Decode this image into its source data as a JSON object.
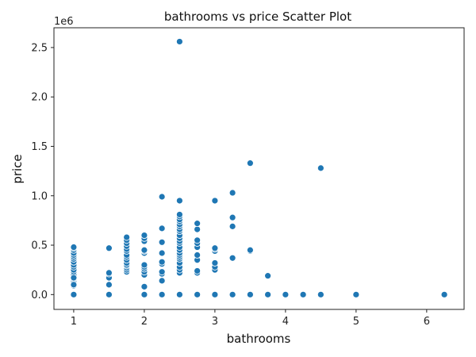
{
  "chart_data": {
    "type": "scatter",
    "title": "bathrooms vs price Scatter Plot",
    "xlabel": "bathrooms",
    "ylabel": "price",
    "y_offset_label": "1e6",
    "xlim": [
      0.72,
      6.53
    ],
    "ylim": [
      -150000,
      2700000
    ],
    "x_ticks": [
      1,
      2,
      3,
      4,
      5,
      6
    ],
    "x_tick_labels": [
      "1",
      "2",
      "3",
      "4",
      "5",
      "6"
    ],
    "y_ticks": [
      0,
      500000,
      1000000,
      1500000,
      2000000,
      2500000
    ],
    "y_tick_labels": [
      "0.0",
      "0.5",
      "1.0",
      "1.5",
      "2.0",
      "2.5"
    ],
    "grid": false,
    "marker_color": "#1f77b4",
    "marker_edge_color": "#ffffff",
    "series": [
      {
        "x": [
          1,
          1,
          1,
          1,
          1,
          1,
          1,
          1,
          1,
          1,
          1,
          1,
          1,
          1,
          1,
          1,
          1,
          1,
          1,
          1,
          1,
          1.5,
          1.5,
          1.5,
          1.5,
          1.5,
          1.5,
          1.75,
          1.75,
          1.75,
          1.75,
          1.75,
          1.75,
          1.75,
          1.75,
          1.75,
          1.75,
          1.75,
          1.75,
          1.75,
          1.75,
          1.75,
          2,
          2,
          2,
          2,
          2,
          2,
          2,
          2,
          2,
          2,
          2,
          2,
          2,
          2.25,
          2.25,
          2.25,
          2.25,
          2.25,
          2.25,
          2.25,
          2.25,
          2.25,
          2.25,
          2.5,
          2.5,
          2.5,
          2.5,
          2.5,
          2.5,
          2.5,
          2.5,
          2.5,
          2.5,
          2.5,
          2.5,
          2.5,
          2.5,
          2.5,
          2.5,
          2.5,
          2.5,
          2.5,
          2.5,
          2.5,
          2.5,
          2.5,
          2.5,
          2.5,
          2.75,
          2.75,
          2.75,
          2.75,
          2.75,
          2.75,
          2.75,
          2.75,
          2.75,
          2.75,
          3,
          3,
          3,
          3,
          3,
          3,
          3,
          3,
          3.25,
          3.25,
          3.25,
          3.25,
          3.25,
          3.5,
          3.5,
          3.5,
          3.5,
          3.75,
          3.75,
          4,
          4.25,
          4.5,
          4.5,
          5,
          6.25
        ],
        "y": [
          0,
          90000,
          120000,
          140000,
          160000,
          180000,
          200000,
          230000,
          250000,
          280000,
          300000,
          330000,
          360000,
          380000,
          400000,
          420000,
          450000,
          470000,
          480000,
          100000,
          170000,
          0,
          100000,
          170000,
          210000,
          220000,
          470000,
          230000,
          250000,
          270000,
          290000,
          300000,
          320000,
          350000,
          380000,
          400000,
          440000,
          460000,
          490000,
          520000,
          550000,
          580000,
          0,
          80000,
          200000,
          230000,
          260000,
          280000,
          300000,
          420000,
          440000,
          450000,
          540000,
          570000,
          600000,
          0,
          140000,
          210000,
          230000,
          310000,
          330000,
          420000,
          530000,
          670000,
          990000,
          0,
          220000,
          250000,
          280000,
          320000,
          360000,
          380000,
          400000,
          420000,
          450000,
          480000,
          520000,
          540000,
          570000,
          600000,
          640000,
          660000,
          690000,
          710000,
          740000,
          760000,
          790000,
          810000,
          950000,
          2560000,
          0,
          220000,
          240000,
          350000,
          400000,
          480000,
          520000,
          550000,
          660000,
          720000,
          0,
          250000,
          280000,
          320000,
          440000,
          460000,
          470000,
          950000,
          0,
          370000,
          690000,
          780000,
          1030000,
          0,
          440000,
          450000,
          1330000,
          0,
          190000,
          0,
          0,
          0,
          1280000,
          0,
          0
        ]
      }
    ]
  }
}
